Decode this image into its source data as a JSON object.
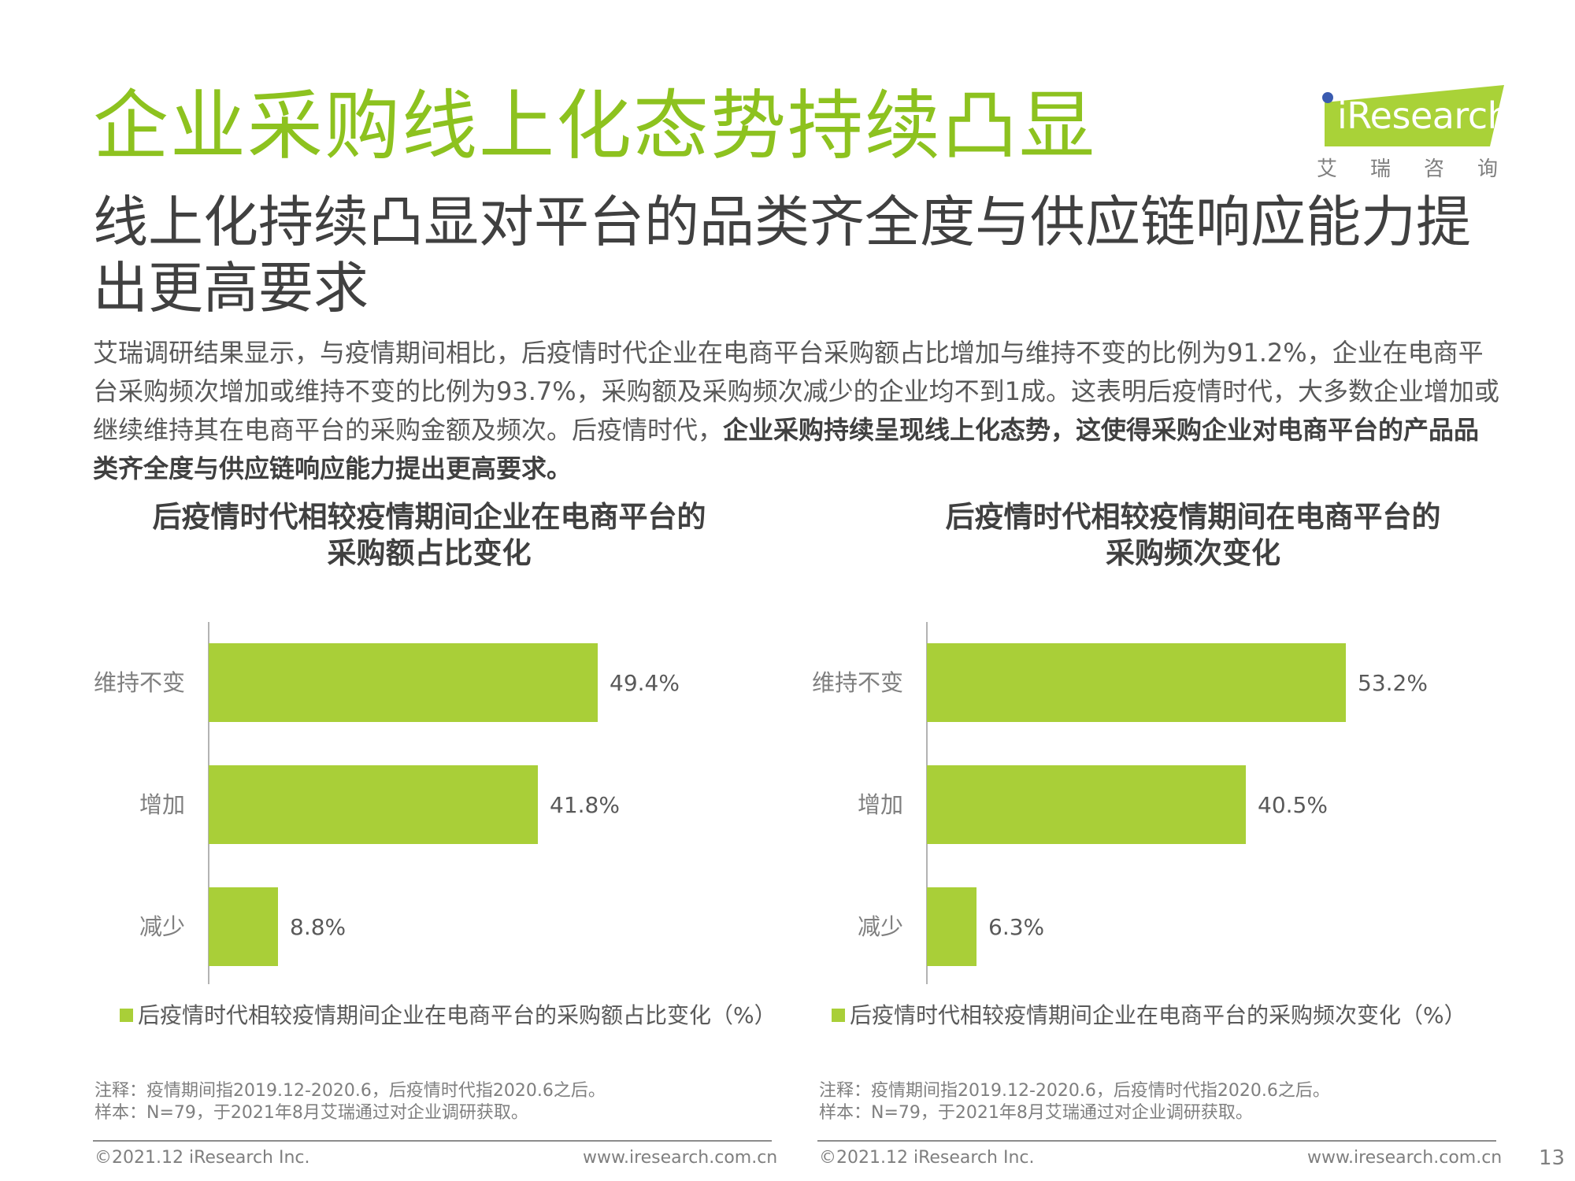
{
  "page": {
    "title": "企业采购线上化态势持续凸显",
    "subtitle": "线上化持续凸显对平台的品类齐全度与供应链响应能力提出更高要求",
    "body_plain": "艾瑞调研结果显示，与疫情期间相比，后疫情时代企业在电商平台采购额占比增加与维持不变的比例为91.2%，企业在电商平台采购频次增加或维持不变的比例为93.7%，采购额及采购频次减少的企业均不到1成。这表明后疫情时代，大多数企业增加或继续维持其在电商平台的采购金额及频次。后疫情时代，",
    "body_bold": "企业采购持续呈现线上化态势，这使得采购企业对电商平台的产品品类齐全度与供应链响应能力提出更高要求。",
    "page_number": "13"
  },
  "logo": {
    "text": "iResearch",
    "cn": "艾瑞咨询",
    "colors": {
      "mark": "#a9d238",
      "dot": "#3a5bb0"
    }
  },
  "colors": {
    "title": "#8dc21f",
    "bar": "#a9cf38"
  },
  "chart_data": [
    {
      "type": "bar",
      "orientation": "horizontal",
      "title_line1": "后疫情时代相较疫情期间企业在电商平台的",
      "title_line2": "采购额占比变化",
      "categories": [
        "维持不变",
        "增加",
        "减少"
      ],
      "values": [
        49.4,
        41.8,
        8.8
      ],
      "value_labels": [
        "49.4%",
        "41.8%",
        "8.8%"
      ],
      "xlim": [
        0,
        70
      ],
      "legend": "后疫情时代相较疫情期间企业在电商平台的采购额占比变化（%）",
      "note_line1": "注释：疫情期间指2019.12-2020.6，后疫情时代指2020.6之后。",
      "note_line2": "样本：N=79，于2021年8月艾瑞通过对企业调研获取。",
      "footer_left": "©2021.12 iResearch Inc.",
      "footer_right": "www.iresearch.com.cn"
    },
    {
      "type": "bar",
      "orientation": "horizontal",
      "title_line1": "后疫情时代相较疫情期间在电商平台的",
      "title_line2": "采购频次变化",
      "categories": [
        "维持不变",
        "增加",
        "减少"
      ],
      "values": [
        53.2,
        40.5,
        6.3
      ],
      "value_labels": [
        "53.2%",
        "40.5%",
        "6.3%"
      ],
      "xlim": [
        0,
        70
      ],
      "legend": "后疫情时代相较疫情期间企业在电商平台的采购频次变化（%）",
      "note_line1": "注释：疫情期间指2019.12-2020.6，后疫情时代指2020.6之后。",
      "note_line2": "样本：N=79，于2021年8月艾瑞通过对企业调研获取。",
      "footer_left": "©2021.12 iResearch Inc.",
      "footer_right": "www.iresearch.com.cn"
    }
  ]
}
